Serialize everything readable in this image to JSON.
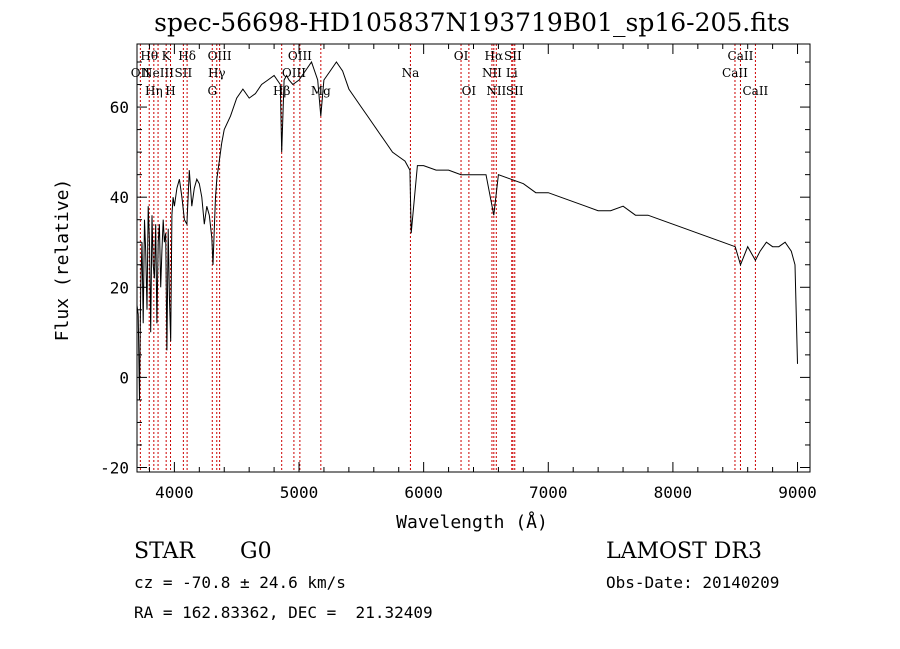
{
  "chart_data": {
    "type": "line",
    "title": "spec-56698-HD105837N193719B01_sp16-205.fits",
    "xlabel": "Wavelength (Å)",
    "ylabel": "Flux (relative)",
    "xlim": [
      3700,
      9100
    ],
    "ylim": [
      -21,
      74
    ],
    "xticks": [
      4000,
      5000,
      6000,
      7000,
      8000,
      9000
    ],
    "yticks": [
      -20,
      0,
      20,
      40,
      60
    ],
    "grid": false,
    "line_color": "#000000",
    "marker_color": "#cc0000",
    "series": [
      {
        "x": [
          3700,
          3710,
          3720,
          3730,
          3740,
          3750,
          3760,
          3770,
          3780,
          3790,
          3800,
          3810,
          3820,
          3830,
          3840,
          3850,
          3860,
          3870,
          3880,
          3890,
          3900,
          3910,
          3920,
          3930,
          3940,
          3950,
          3960,
          3970,
          3980,
          3990,
          4000,
          4020,
          4040,
          4060,
          4080,
          4100,
          4120,
          4140,
          4160,
          4180,
          4200,
          4220,
          4240,
          4260,
          4280,
          4300,
          4310,
          4320,
          4330,
          4340,
          4360,
          4380,
          4400,
          4450,
          4500,
          4550,
          4600,
          4650,
          4700,
          4750,
          4800,
          4850,
          4861,
          4880,
          4900,
          4920,
          4950,
          5000,
          5050,
          5100,
          5150,
          5175,
          5200,
          5250,
          5300,
          5350,
          5400,
          5450,
          5500,
          5550,
          5600,
          5650,
          5700,
          5750,
          5800,
          5850,
          5890,
          5900,
          5950,
          6000,
          6100,
          6200,
          6300,
          6400,
          6500,
          6563,
          6600,
          6700,
          6800,
          6900,
          7000,
          7100,
          7200,
          7300,
          7400,
          7500,
          7600,
          7700,
          7800,
          7900,
          8000,
          8100,
          8200,
          8300,
          8400,
          8500,
          8542,
          8600,
          8662,
          8700,
          8750,
          8800,
          8850,
          8900,
          8950,
          8980,
          9000
        ],
        "y": [
          16,
          14,
          -5,
          20,
          30,
          12,
          35,
          28,
          15,
          38,
          30,
          10,
          36,
          25,
          22,
          34,
          12,
          30,
          34,
          20,
          28,
          35,
          30,
          32,
          6,
          33,
          18,
          8,
          36,
          40,
          38,
          42,
          44,
          40,
          35,
          34,
          46,
          38,
          42,
          44,
          43,
          40,
          34,
          38,
          36,
          31,
          25,
          33,
          40,
          44,
          48,
          52,
          55,
          58,
          62,
          64,
          62,
          63,
          65,
          66,
          67,
          65,
          50,
          66,
          67,
          66,
          65,
          66,
          68,
          70,
          66,
          58,
          66,
          68,
          70,
          68,
          64,
          62,
          60,
          58,
          56,
          54,
          52,
          50,
          49,
          48,
          46,
          32,
          47,
          47,
          46,
          46,
          45,
          45,
          45,
          36,
          45,
          44,
          43,
          41,
          41,
          40,
          39,
          38,
          37,
          37,
          38,
          36,
          36,
          35,
          34,
          33,
          32,
          31,
          30,
          29,
          25,
          29,
          26,
          28,
          30,
          29,
          29,
          30,
          28,
          25,
          3
        ]
      }
    ],
    "lines": [
      {
        "label": "OII",
        "x": 3727,
        "row": 2
      },
      {
        "label": "Hθ",
        "x": 3798,
        "row": 1
      },
      {
        "label": "Hη",
        "x": 3835,
        "row": 3
      },
      {
        "label": "NeIII",
        "x": 3869,
        "row": 2
      },
      {
        "label": "K",
        "x": 3934,
        "row": 1
      },
      {
        "label": "H",
        "x": 3969,
        "row": 3
      },
      {
        "label": "SII",
        "x": 4072,
        "row": 2
      },
      {
        "label": "Hδ",
        "x": 4102,
        "row": 1
      },
      {
        "label": "G",
        "x": 4304,
        "row": 3
      },
      {
        "label": "Hγ",
        "x": 4340,
        "row": 2
      },
      {
        "label": "OIII",
        "x": 4363,
        "row": 1
      },
      {
        "label": "Hβ",
        "x": 4861,
        "row": 3
      },
      {
        "label": "OIII",
        "x": 4959,
        "row": 2
      },
      {
        "label": "OIII",
        "x": 5007,
        "row": 1
      },
      {
        "label": "Mg",
        "x": 5175,
        "row": 3
      },
      {
        "label": "Na",
        "x": 5894,
        "row": 2
      },
      {
        "label": "OI",
        "x": 6300,
        "row": 1
      },
      {
        "label": "OI",
        "x": 6363,
        "row": 3
      },
      {
        "label": "NII",
        "x": 6548,
        "row": 2
      },
      {
        "label": "Hα",
        "x": 6563,
        "row": 1
      },
      {
        "label": "NII",
        "x": 6583,
        "row": 3
      },
      {
        "label": "Li",
        "x": 6707,
        "row": 2
      },
      {
        "label": "SII",
        "x": 6716,
        "row": 1
      },
      {
        "label": "SII",
        "x": 6731,
        "row": 3
      },
      {
        "label": "CaII",
        "x": 8498,
        "row": 2
      },
      {
        "label": "CaII",
        "x": 8542,
        "row": 1
      },
      {
        "label": "CaII",
        "x": 8662,
        "row": 3
      }
    ]
  },
  "footer": {
    "class_label": "STAR",
    "subclass": "G0",
    "survey": "LAMOST DR3",
    "redshift_line": "cz = -70.8 ± 24.6 km/s",
    "obs_date": "Obs-Date: 20140209",
    "coords": "RA = 162.83362, DEC =  21.32409"
  }
}
